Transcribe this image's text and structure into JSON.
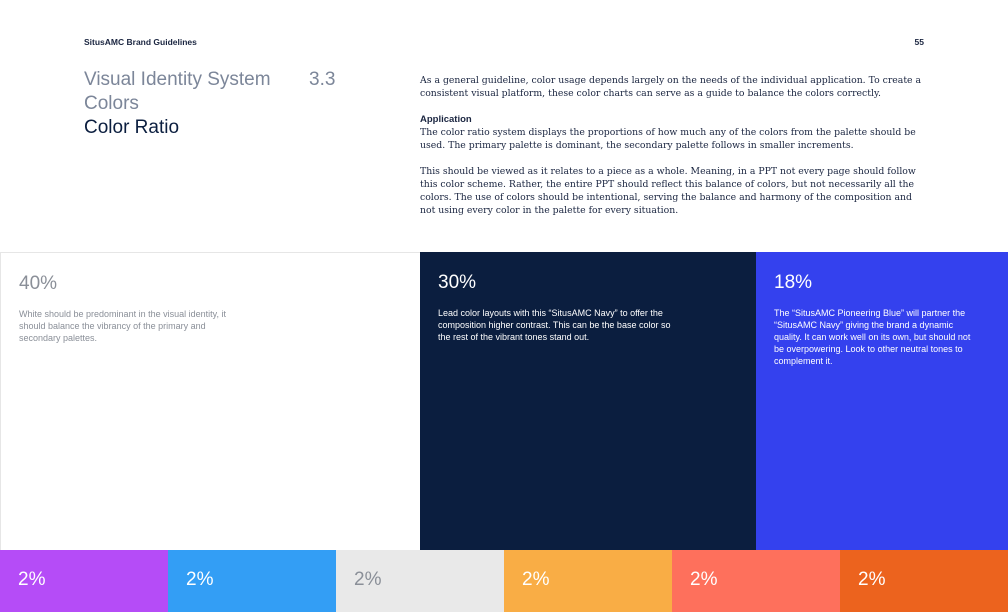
{
  "header": {
    "left": "SitusAMC Brand Guidelines",
    "page_number": "55"
  },
  "title": {
    "line1": "Visual Identity System",
    "line2": "Colors",
    "line3": "Color Ratio",
    "section_number": "3.3"
  },
  "body": {
    "intro": "As a general guideline, color usage depends largely on the needs of the individual application. To create a consistent visual platform, these color charts can serve as a guide to balance the colors correctly.",
    "application_heading": "Application",
    "application_text": "The color ratio system displays the proportions of how much any of the colors from the palette should be used. The primary palette is dominant, the secondary palette follows in smaller increments.",
    "whole_text": "This should be viewed as it relates to a piece as a whole. Meaning, in a PPT not every page should follow this color scheme. Rather, the entire PPT should reflect this balance of colors, but not necessarily all the colors. The use of colors should be intentional, serving the balance and harmony of the composition and not using every color in the palette for every situation."
  },
  "primary_blocks": [
    {
      "percent": "40%",
      "text": "White should be predominant in the visual identity, it should balance the vibrancy of the primary and secondary palettes.",
      "color": "#ffffff",
      "share": 40
    },
    {
      "percent": "30%",
      "text": "Lead color layouts with this “SitusAMC Navy” to offer the composition higher contrast. This can be the base color so the rest of the vibrant tones stand out.",
      "color": "#0b1e3f",
      "share": 30
    },
    {
      "percent": "18%",
      "text": "The “SitusAMC Pioneering Blue” will partner the “SitusAMC Navy” giving the brand a dynamic quality. It can work well on its own, but should not be overpowering. Look to other neutral tones to complement it.",
      "color": "#3441ee",
      "share": 18
    }
  ],
  "secondary_blocks": [
    {
      "percent": "2%",
      "color": "#b54cf7",
      "text_color": "#ffffff"
    },
    {
      "percent": "2%",
      "color": "#339ef5",
      "text_color": "#ffffff"
    },
    {
      "percent": "2%",
      "color": "#e9e9e9",
      "text_color": "#8a8f98"
    },
    {
      "percent": "2%",
      "color": "#f9ad45",
      "text_color": "#ffffff"
    },
    {
      "percent": "2%",
      "color": "#fe705c",
      "text_color": "#ffffff"
    },
    {
      "percent": "2%",
      "color": "#ec631e",
      "text_color": "#ffffff"
    }
  ]
}
